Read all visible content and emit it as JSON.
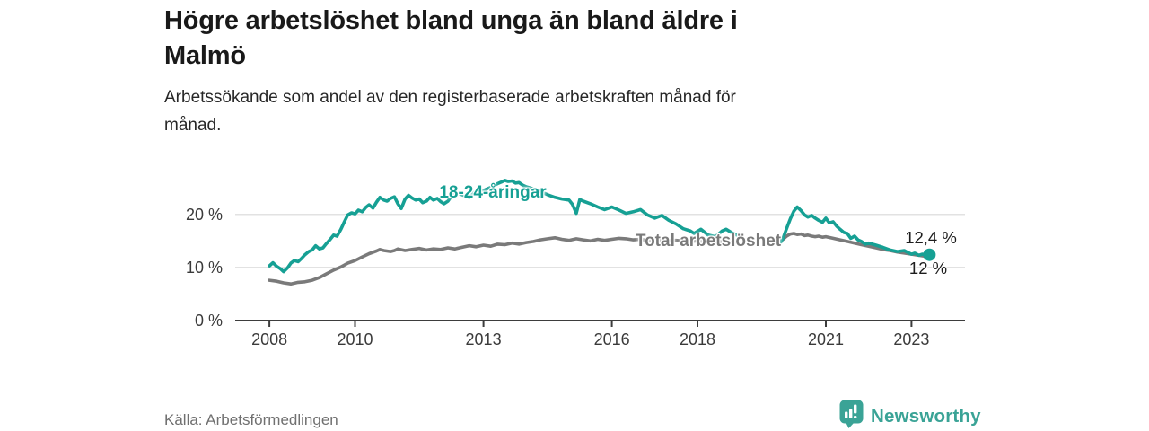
{
  "header": {
    "title_lines": [
      "Högre arbetslöshet bland unga än bland äldre i",
      "Malmö"
    ],
    "subtitle_lines": [
      "Arbetssökande som andel av den registerbaserade arbetskraften månad för",
      "månad."
    ]
  },
  "footer": {
    "source": "Källa: Arbetsförmedlingen",
    "brand": "Newsworthy",
    "brand_icon": "newsworthy-speech-bubble-bar-chart-icon"
  },
  "colors": {
    "young": "#16a094",
    "total": "#7a7a7a",
    "axis": "#3d3d3d",
    "grid": "#d8d8d8",
    "brand": "#3aa396"
  },
  "chart_data": {
    "type": "line",
    "title": "Högre arbetslöshet bland unga än bland äldre i Malmö",
    "subtitle": "Arbetssökande som andel av den registerbaserade arbetskraften månad för månad.",
    "source": "Källa: Arbetsförmedlingen",
    "unit": "%",
    "xlabel": "",
    "ylabel": "",
    "xlim": [
      2007.2,
      2024.25
    ],
    "ylim": [
      0,
      27.4
    ],
    "grid": true,
    "legend_position": "inline-labels",
    "x_ticks": [
      2008,
      2010,
      2013,
      2016,
      2018,
      2021,
      2023
    ],
    "y_ticks": [
      {
        "value": 0,
        "label": "0 %"
      },
      {
        "value": 10,
        "label": "10 %"
      },
      {
        "value": 20,
        "label": "20 %"
      }
    ],
    "data_gap_note": "no data plotted for 2019",
    "series": [
      {
        "name": "18-24-åringar",
        "color": "#16a094",
        "end_label": "12,4 %",
        "end_value": 12.4,
        "dot_last": true,
        "points": [
          [
            2008.0,
            10.3
          ],
          [
            2008.08,
            10.9
          ],
          [
            2008.17,
            10.2
          ],
          [
            2008.25,
            9.8
          ],
          [
            2008.33,
            9.2
          ],
          [
            2008.42,
            9.9
          ],
          [
            2008.5,
            10.8
          ],
          [
            2008.58,
            11.3
          ],
          [
            2008.67,
            11.1
          ],
          [
            2008.75,
            11.7
          ],
          [
            2008.83,
            12.4
          ],
          [
            2008.92,
            13.0
          ],
          [
            2009.0,
            13.3
          ],
          [
            2009.08,
            14.1
          ],
          [
            2009.17,
            13.5
          ],
          [
            2009.25,
            13.7
          ],
          [
            2009.33,
            14.5
          ],
          [
            2009.42,
            15.3
          ],
          [
            2009.5,
            16.1
          ],
          [
            2009.58,
            15.9
          ],
          [
            2009.67,
            17.2
          ],
          [
            2009.75,
            18.6
          ],
          [
            2009.83,
            19.9
          ],
          [
            2009.92,
            20.3
          ],
          [
            2010.0,
            20.1
          ],
          [
            2010.08,
            20.8
          ],
          [
            2010.17,
            20.5
          ],
          [
            2010.25,
            21.3
          ],
          [
            2010.33,
            21.8
          ],
          [
            2010.42,
            21.2
          ],
          [
            2010.5,
            22.3
          ],
          [
            2010.58,
            23.2
          ],
          [
            2010.67,
            22.7
          ],
          [
            2010.75,
            22.5
          ],
          [
            2010.83,
            23.0
          ],
          [
            2010.92,
            23.3
          ],
          [
            2011.0,
            22.0
          ],
          [
            2011.08,
            21.1
          ],
          [
            2011.17,
            22.9
          ],
          [
            2011.25,
            23.6
          ],
          [
            2011.33,
            23.1
          ],
          [
            2011.42,
            22.7
          ],
          [
            2011.5,
            22.9
          ],
          [
            2011.58,
            22.2
          ],
          [
            2011.67,
            22.5
          ],
          [
            2011.75,
            23.2
          ],
          [
            2011.83,
            22.7
          ],
          [
            2011.92,
            23.0
          ],
          [
            2012.0,
            22.4
          ],
          [
            2012.08,
            22.0
          ],
          [
            2012.17,
            22.5
          ],
          [
            2012.25,
            23.4
          ],
          [
            2012.33,
            24.3
          ],
          [
            2012.42,
            24.0
          ],
          [
            2012.5,
            23.7
          ],
          [
            2012.58,
            23.5
          ],
          [
            2012.67,
            23.2
          ],
          [
            2012.75,
            23.9
          ],
          [
            2012.83,
            24.4
          ],
          [
            2012.92,
            24.6
          ],
          [
            2013.0,
            24.5
          ],
          [
            2013.17,
            25.1
          ],
          [
            2013.33,
            25.8
          ],
          [
            2013.42,
            26.1
          ],
          [
            2013.5,
            26.4
          ],
          [
            2013.58,
            26.2
          ],
          [
            2013.67,
            26.3
          ],
          [
            2013.75,
            25.9
          ],
          [
            2013.83,
            26.0
          ],
          [
            2013.92,
            25.5
          ],
          [
            2014.0,
            25.2
          ],
          [
            2014.17,
            24.8
          ],
          [
            2014.33,
            24.3
          ],
          [
            2014.5,
            23.7
          ],
          [
            2014.67,
            23.2
          ],
          [
            2014.83,
            22.9
          ],
          [
            2015.0,
            22.7
          ],
          [
            2015.08,
            21.9
          ],
          [
            2015.17,
            20.2
          ],
          [
            2015.25,
            22.8
          ],
          [
            2015.33,
            22.5
          ],
          [
            2015.5,
            22.0
          ],
          [
            2015.67,
            21.4
          ],
          [
            2015.83,
            20.9
          ],
          [
            2016.0,
            21.4
          ],
          [
            2016.17,
            20.8
          ],
          [
            2016.33,
            20.2
          ],
          [
            2016.5,
            20.5
          ],
          [
            2016.67,
            20.9
          ],
          [
            2016.83,
            19.9
          ],
          [
            2017.0,
            19.3
          ],
          [
            2017.17,
            19.8
          ],
          [
            2017.33,
            18.9
          ],
          [
            2017.5,
            18.2
          ],
          [
            2017.67,
            17.3
          ],
          [
            2017.83,
            16.9
          ],
          [
            2017.92,
            16.4
          ],
          [
            2018.08,
            17.2
          ],
          [
            2018.25,
            16.1
          ],
          [
            2018.42,
            15.8
          ],
          [
            2018.58,
            16.9
          ],
          [
            2018.67,
            17.2
          ],
          [
            2018.83,
            16.4
          ],
          [
            2018.92,
            16.1
          ],
          [
            2019.4,
            null
          ],
          [
            2019.92,
            14.4
          ],
          [
            2020.0,
            15.5
          ],
          [
            2020.08,
            17.3
          ],
          [
            2020.17,
            19.2
          ],
          [
            2020.25,
            20.6
          ],
          [
            2020.33,
            21.4
          ],
          [
            2020.42,
            20.7
          ],
          [
            2020.5,
            19.9
          ],
          [
            2020.58,
            19.5
          ],
          [
            2020.67,
            19.8
          ],
          [
            2020.75,
            19.3
          ],
          [
            2020.83,
            18.9
          ],
          [
            2020.92,
            18.5
          ],
          [
            2021.0,
            19.3
          ],
          [
            2021.08,
            18.4
          ],
          [
            2021.17,
            18.6
          ],
          [
            2021.25,
            17.8
          ],
          [
            2021.33,
            17.2
          ],
          [
            2021.42,
            16.6
          ],
          [
            2021.5,
            16.4
          ],
          [
            2021.58,
            15.5
          ],
          [
            2021.67,
            15.9
          ],
          [
            2021.75,
            15.2
          ],
          [
            2021.83,
            14.9
          ],
          [
            2021.92,
            14.4
          ],
          [
            2022.0,
            14.6
          ],
          [
            2022.17,
            14.2
          ],
          [
            2022.33,
            13.8
          ],
          [
            2022.5,
            13.3
          ],
          [
            2022.67,
            13.0
          ],
          [
            2022.83,
            13.2
          ],
          [
            2022.92,
            12.8
          ],
          [
            2023.0,
            12.5
          ],
          [
            2023.08,
            12.7
          ],
          [
            2023.17,
            12.3
          ],
          [
            2023.25,
            12.5
          ],
          [
            2023.42,
            12.4
          ]
        ]
      },
      {
        "name": "Total arbetslöshet",
        "color": "#7a7a7a",
        "end_label": "12 %",
        "end_value": 12.0,
        "dot_last": false,
        "points": [
          [
            2008.0,
            7.6
          ],
          [
            2008.17,
            7.4
          ],
          [
            2008.33,
            7.1
          ],
          [
            2008.5,
            6.9
          ],
          [
            2008.67,
            7.2
          ],
          [
            2008.83,
            7.3
          ],
          [
            2009.0,
            7.6
          ],
          [
            2009.17,
            8.1
          ],
          [
            2009.33,
            8.8
          ],
          [
            2009.5,
            9.5
          ],
          [
            2009.67,
            10.1
          ],
          [
            2009.83,
            10.8
          ],
          [
            2010.0,
            11.3
          ],
          [
            2010.17,
            12.0
          ],
          [
            2010.33,
            12.6
          ],
          [
            2010.5,
            13.1
          ],
          [
            2010.58,
            13.4
          ],
          [
            2010.67,
            13.2
          ],
          [
            2010.83,
            13.0
          ],
          [
            2010.92,
            13.2
          ],
          [
            2011.0,
            13.5
          ],
          [
            2011.17,
            13.2
          ],
          [
            2011.33,
            13.4
          ],
          [
            2011.5,
            13.6
          ],
          [
            2011.67,
            13.3
          ],
          [
            2011.83,
            13.5
          ],
          [
            2012.0,
            13.4
          ],
          [
            2012.17,
            13.7
          ],
          [
            2012.33,
            13.5
          ],
          [
            2012.5,
            13.8
          ],
          [
            2012.67,
            14.1
          ],
          [
            2012.83,
            13.9
          ],
          [
            2013.0,
            14.2
          ],
          [
            2013.17,
            14.0
          ],
          [
            2013.33,
            14.4
          ],
          [
            2013.5,
            14.3
          ],
          [
            2013.67,
            14.6
          ],
          [
            2013.83,
            14.4
          ],
          [
            2014.0,
            14.7
          ],
          [
            2014.17,
            14.9
          ],
          [
            2014.33,
            15.2
          ],
          [
            2014.5,
            15.4
          ],
          [
            2014.67,
            15.6
          ],
          [
            2014.83,
            15.3
          ],
          [
            2015.0,
            15.1
          ],
          [
            2015.17,
            15.4
          ],
          [
            2015.33,
            15.2
          ],
          [
            2015.5,
            15.0
          ],
          [
            2015.67,
            15.3
          ],
          [
            2015.83,
            15.1
          ],
          [
            2016.0,
            15.3
          ],
          [
            2016.17,
            15.5
          ],
          [
            2016.33,
            15.4
          ],
          [
            2016.5,
            15.2
          ],
          [
            2016.67,
            15.3
          ],
          [
            2016.83,
            15.1
          ],
          [
            2017.0,
            15.2
          ],
          [
            2017.25,
            15.0
          ],
          [
            2017.5,
            15.1
          ],
          [
            2017.75,
            14.9
          ],
          [
            2018.0,
            15.0
          ],
          [
            2018.25,
            14.8
          ],
          [
            2018.5,
            14.9
          ],
          [
            2018.75,
            14.7
          ],
          [
            2018.92,
            14.8
          ],
          [
            2019.4,
            null
          ],
          [
            2019.92,
            14.9
          ],
          [
            2020.0,
            15.3
          ],
          [
            2020.08,
            15.9
          ],
          [
            2020.17,
            16.3
          ],
          [
            2020.25,
            16.4
          ],
          [
            2020.33,
            16.2
          ],
          [
            2020.42,
            16.3
          ],
          [
            2020.5,
            16.0
          ],
          [
            2020.58,
            16.1
          ],
          [
            2020.67,
            15.9
          ],
          [
            2020.75,
            15.8
          ],
          [
            2020.83,
            15.9
          ],
          [
            2020.92,
            15.7
          ],
          [
            2021.0,
            15.8
          ],
          [
            2021.17,
            15.5
          ],
          [
            2021.33,
            15.2
          ],
          [
            2021.5,
            14.9
          ],
          [
            2021.67,
            14.6
          ],
          [
            2021.83,
            14.3
          ],
          [
            2022.0,
            14.0
          ],
          [
            2022.17,
            13.7
          ],
          [
            2022.33,
            13.4
          ],
          [
            2022.5,
            13.2
          ],
          [
            2022.67,
            12.9
          ],
          [
            2022.83,
            12.7
          ],
          [
            2023.0,
            12.5
          ],
          [
            2023.17,
            12.3
          ],
          [
            2023.33,
            12.1
          ],
          [
            2023.42,
            12.0
          ]
        ]
      }
    ]
  }
}
